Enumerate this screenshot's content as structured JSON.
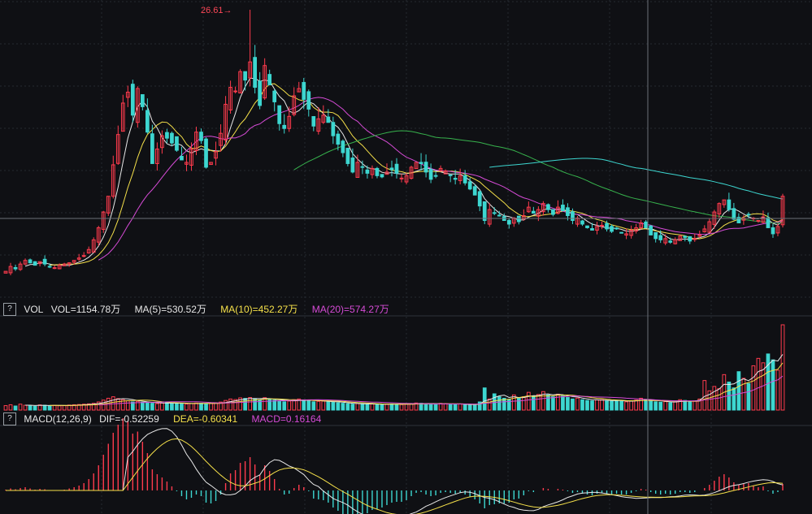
{
  "colors": {
    "background": "#0f1014",
    "grid": "#262a31",
    "up": "#ff3b4d",
    "down": "#3dd6d0",
    "white": "#e8e8e8",
    "yellow": "#f5e04a",
    "magenta": "#d64bd6",
    "green": "#37b24d",
    "cyan": "#3dd6d0",
    "text": "#e6e6e6"
  },
  "price_peak": {
    "label": "26.61"
  },
  "vol_legend": {
    "help": "?",
    "name": "VOL",
    "vol": "VOL=1154.78万",
    "ma5": "MA(5)=530.52万",
    "ma10": "MA(10)=452.27万",
    "ma20": "MA(20)=574.27万"
  },
  "macd_legend": {
    "help": "?",
    "name": "MACD(12,26,9)",
    "dif": "DIF=-0.52259",
    "dea": "DEA=-0.60341",
    "macd": "MACD=0.16164"
  },
  "chart_data": [
    {
      "type": "candlestick",
      "panel": "price",
      "num_candles": 160,
      "close": [
        5.0,
        5.4,
        5.2,
        5.6,
        5.9,
        5.7,
        5.5,
        5.8,
        5.6,
        5.4,
        5.3,
        5.5,
        5.6,
        5.7,
        5.9,
        6.1,
        6.3,
        6.8,
        7.6,
        8.6,
        9.9,
        11.2,
        13.8,
        16.3,
        18.9,
        19.8,
        17.9,
        20.1,
        18.6,
        16.5,
        13.9,
        15.1,
        16.2,
        16.0,
        15.6,
        15.0,
        14.2,
        14.0,
        15.1,
        16.5,
        15.8,
        13.6,
        14.0,
        14.9,
        16.4,
        18.8,
        20.2,
        19.9,
        21.5,
        20.8,
        22.3,
        20.2,
        18.7,
        22.0,
        20.4,
        19.0,
        17.2,
        16.8,
        17.8,
        19.5,
        20.1,
        19.2,
        18.4,
        17.0,
        17.6,
        17.9,
        17.3,
        16.2,
        15.5,
        14.8,
        13.9,
        13.2,
        14.0,
        13.6,
        13.1,
        13.5,
        12.9,
        12.8,
        13.2,
        13.4,
        13.1,
        12.7,
        12.9,
        13.6,
        14.0,
        13.9,
        13.2,
        12.6,
        12.9,
        13.5,
        13.3,
        12.9,
        12.6,
        12.9,
        12.3,
        11.8,
        11.3,
        10.4,
        9.2,
        10.1,
        9.8,
        9.6,
        9.2,
        8.9,
        9.4,
        9.1,
        9.6,
        10.3,
        9.8,
        10.1,
        10.6,
        10.1,
        9.7,
        10.3,
        10.0,
        9.6,
        9.2,
        9.4,
        8.9,
        8.6,
        8.4,
        8.7,
        8.8,
        8.5,
        8.3,
        8.5,
        8.2,
        8.1,
        8.4,
        8.6,
        9.0,
        8.6,
        8.0,
        7.7,
        7.6,
        7.7,
        7.4,
        7.6,
        7.9,
        7.8,
        7.5,
        7.7,
        8.0,
        8.5,
        9.1,
        9.9,
        10.6,
        10.9,
        10.1,
        9.3,
        9.0,
        9.4,
        9.7,
        9.4,
        9.2,
        9.5,
        8.6,
        8.1,
        8.7,
        11.2
      ],
      "annotations": [
        "26.61"
      ],
      "overlays": [
        "MA5",
        "MA10",
        "MA20",
        "MA60",
        "MA120"
      ]
    },
    {
      "type": "bar",
      "panel": "volume",
      "unit": "万",
      "values": [
        60,
        72,
        55,
        80,
        65,
        58,
        52,
        70,
        66,
        61,
        63,
        58,
        60,
        68,
        72,
        75,
        80,
        84,
        92,
        110,
        135,
        160,
        180,
        155,
        140,
        125,
        110,
        118,
        105,
        98,
        92,
        88,
        95,
        100,
        96,
        90,
        85,
        82,
        88,
        95,
        92,
        86,
        90,
        96,
        108,
        130,
        150,
        142,
        165,
        158,
        170,
        150,
        135,
        168,
        150,
        135,
        118,
        112,
        122,
        140,
        150,
        138,
        126,
        112,
        118,
        122,
        115,
        104,
        98,
        92,
        86,
        80,
        88,
        84,
        78,
        82,
        76,
        75,
        80,
        84,
        79,
        74,
        78,
        88,
        96,
        92,
        84,
        78,
        82,
        90,
        86,
        80,
        76,
        82,
        74,
        70,
        66,
        110,
        300,
        150,
        220,
        180,
        160,
        140,
        205,
        160,
        180,
        240,
        190,
        210,
        250,
        205,
        180,
        215,
        190,
        170,
        150,
        162,
        140,
        130,
        125,
        138,
        140,
        128,
        120,
        130,
        118,
        112,
        126,
        135,
        160,
        140,
        120,
        112,
        108,
        115,
        100,
        112,
        140,
        130,
        118,
        124,
        150,
        400,
        260,
        320,
        290,
        480,
        380,
        300,
        520,
        430,
        360,
        600,
        700,
        640,
        760,
        680,
        540,
        1154.78
      ],
      "overlays": [
        "MA(5)",
        "MA(10)",
        "MA(20)"
      ]
    },
    {
      "type": "bar",
      "panel": "macd",
      "values": [
        0.02,
        0.05,
        0.03,
        0.06,
        0.08,
        0.05,
        0.02,
        0.04,
        0.03,
        0.01,
        -0.01,
        0.01,
        0.02,
        0.05,
        0.08,
        0.12,
        0.18,
        0.28,
        0.42,
        0.62,
        0.88,
        1.15,
        1.42,
        1.62,
        1.78,
        1.7,
        1.4,
        1.45,
        1.2,
        0.92,
        0.52,
        0.4,
        0.32,
        0.22,
        0.1,
        -0.02,
        -0.14,
        -0.22,
        -0.18,
        -0.1,
        -0.14,
        -0.3,
        -0.32,
        -0.26,
        -0.1,
        0.18,
        0.42,
        0.5,
        0.68,
        0.72,
        0.82,
        0.64,
        0.38,
        0.62,
        0.48,
        0.28,
        0.04,
        -0.1,
        -0.08,
        0.06,
        0.14,
        0.08,
        -0.02,
        -0.2,
        -0.22,
        -0.24,
        -0.3,
        -0.42,
        -0.5,
        -0.58,
        -0.66,
        -0.72,
        -0.6,
        -0.58,
        -0.56,
        -0.48,
        -0.46,
        -0.42,
        -0.36,
        -0.3,
        -0.28,
        -0.28,
        -0.24,
        -0.14,
        -0.06,
        -0.04,
        -0.1,
        -0.14,
        -0.12,
        -0.06,
        -0.04,
        -0.06,
        -0.08,
        -0.05,
        -0.1,
        -0.16,
        -0.22,
        -0.32,
        -0.44,
        -0.36,
        -0.34,
        -0.32,
        -0.32,
        -0.3,
        -0.22,
        -0.2,
        -0.12,
        -0.02,
        -0.04,
        0.0,
        0.06,
        0.04,
        0.0,
        0.04,
        0.02,
        -0.02,
        -0.06,
        -0.04,
        -0.08,
        -0.1,
        -0.12,
        -0.08,
        -0.06,
        -0.08,
        -0.1,
        -0.08,
        -0.1,
        -0.1,
        -0.06,
        -0.02,
        0.04,
        0.02,
        -0.04,
        -0.08,
        -0.1,
        -0.08,
        -0.1,
        -0.08,
        -0.04,
        -0.04,
        -0.06,
        -0.04,
        0.0,
        0.06,
        0.14,
        0.24,
        0.34,
        0.4,
        0.32,
        0.2,
        0.14,
        0.16,
        0.18,
        0.12,
        0.08,
        0.1,
        -0.02,
        -0.08,
        -0.04,
        0.16164
      ],
      "lines": [
        "DIF",
        "DEA"
      ]
    }
  ]
}
